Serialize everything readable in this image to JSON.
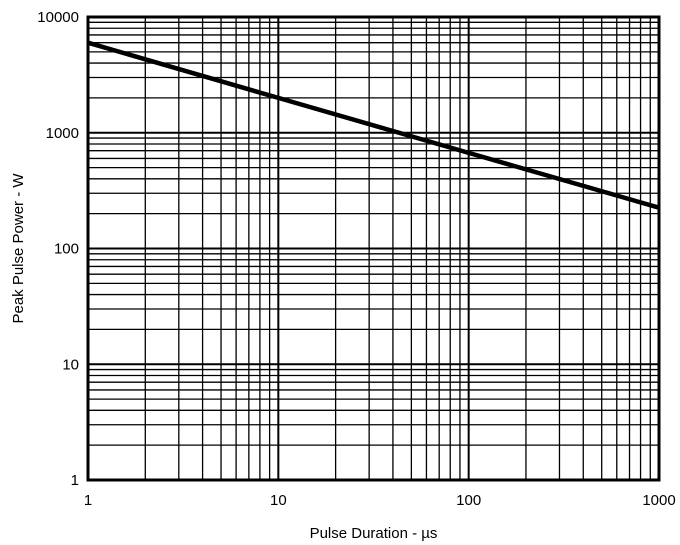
{
  "chart_data": {
    "type": "line",
    "title": "",
    "xlabel": "Pulse Duration - µs",
    "ylabel": "Peak Pulse Power - W",
    "x_scale": "log",
    "y_scale": "log",
    "xlim": [
      1,
      1000
    ],
    "ylim": [
      1,
      10000
    ],
    "x_ticks": [
      1,
      10,
      100,
      1000
    ],
    "y_ticks": [
      1,
      10,
      100,
      1000,
      10000
    ],
    "x_tick_labels": [
      "1",
      "10",
      "100",
      "1000"
    ],
    "y_tick_labels": [
      "1",
      "10",
      "100",
      "1000",
      "10000"
    ],
    "grid": true,
    "legend": "none",
    "line_color": "#000000",
    "series": [
      {
        "x": [
          1,
          10,
          100,
          1000
        ],
        "y": [
          6000,
          2000,
          670,
          225
        ]
      }
    ]
  }
}
